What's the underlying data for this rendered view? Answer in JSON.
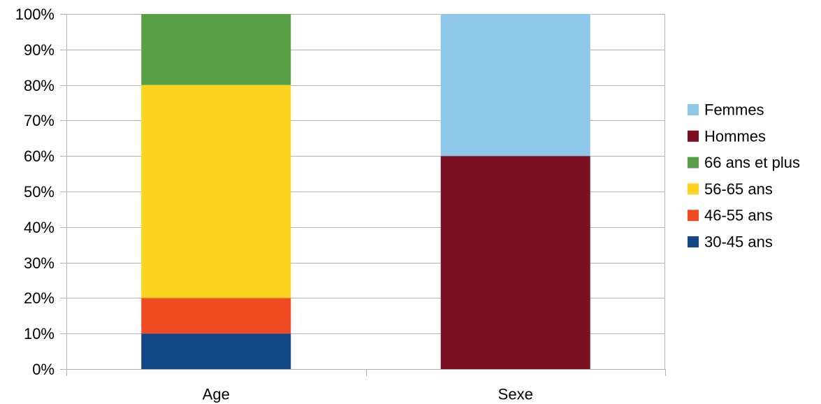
{
  "chart_data": {
    "type": "bar",
    "stacked": true,
    "percent_stacked": true,
    "categories": [
      "Age",
      "Sexe"
    ],
    "ylim": [
      0,
      100
    ],
    "y_ticks": [
      "0%",
      "10%",
      "20%",
      "30%",
      "40%",
      "50%",
      "60%",
      "70%",
      "80%",
      "90%",
      "100%"
    ],
    "grid": true,
    "legend_position": "right",
    "series": [
      {
        "name": "30-45 ans",
        "color": "#134686",
        "values": [
          10,
          0
        ]
      },
      {
        "name": "46-55 ans",
        "color": "#f04b23",
        "values": [
          10,
          0
        ]
      },
      {
        "name": "56-65 ans",
        "color": "#fdd41f",
        "values": [
          60,
          0
        ]
      },
      {
        "name": "66 ans et plus",
        "color": "#57a045",
        "values": [
          20,
          0
        ]
      },
      {
        "name": "Hommes",
        "color": "#7b1023",
        "values": [
          0,
          60
        ]
      },
      {
        "name": "Femmes",
        "color": "#8ec6ea",
        "values": [
          0,
          40
        ]
      }
    ]
  }
}
